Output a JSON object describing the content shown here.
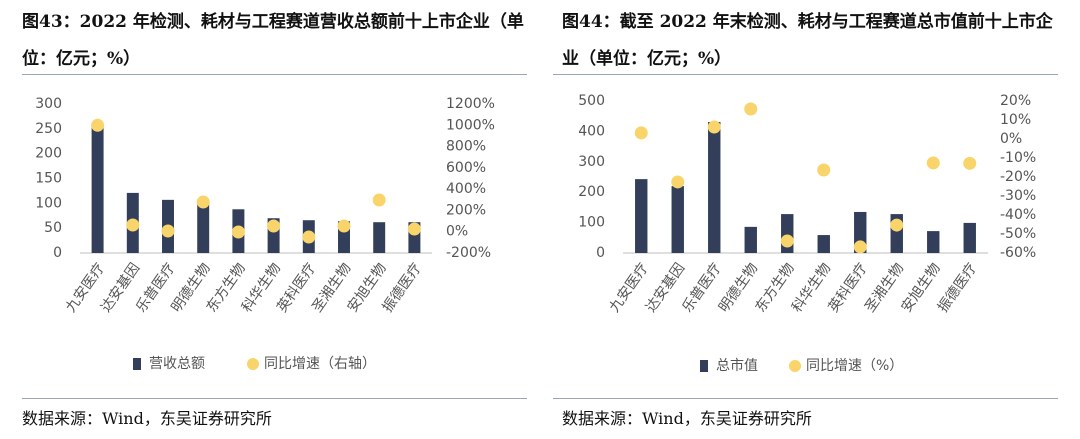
{
  "chart_data": [
    {
      "type": "combo",
      "title": "图43：2022 年检测、耗材与工程赛道营收总额前十上市企业（单位：亿元；%）",
      "source": "数据来源：Wind，东吴证券研究所",
      "categories": [
        "九安医疗",
        "达安基因",
        "乐普医疗",
        "明德生物",
        "东方生物",
        "科华生物",
        "英科医疗",
        "圣湘生物",
        "安旭生物",
        "振德医疗"
      ],
      "series": [
        {
          "name": "营收总额",
          "color": "#333f5a",
          "mark": "bar",
          "values": [
            260,
            121,
            107,
            103,
            88,
            70,
            66,
            64,
            62,
            62
          ]
        },
        {
          "name": "同比增速（右轴）",
          "color": "#f8d46a",
          "mark": "dot",
          "axis": "y2",
          "values": [
            1000,
            63,
            7,
            279,
            -3,
            54,
            -50,
            54,
            298,
            25
          ]
        }
      ],
      "ylim": [
        0,
        300
      ],
      "yticks": [
        0,
        50,
        100,
        150,
        200,
        250,
        300
      ],
      "y2lim": [
        -200,
        1200
      ],
      "y2ticks": [
        {
          "value": -200,
          "label": "-200%"
        },
        {
          "value": 0,
          "label": "0%"
        },
        {
          "value": 200,
          "label": "200%"
        },
        {
          "value": 400,
          "label": "400%"
        },
        {
          "value": 600,
          "label": "600%"
        },
        {
          "value": 800,
          "label": "800%"
        },
        {
          "value": 1000,
          "label": "1000%"
        },
        {
          "value": 1200,
          "label": "1200%"
        }
      ],
      "legend": "bottom"
    },
    {
      "type": "combo",
      "title": "图44：截至 2022 年末检测、耗材与工程赛道总市值前十上市企业（单位：亿元；%）",
      "source": "数据来源：Wind，东吴证券研究所",
      "categories": [
        "九安医疗",
        "达安基因",
        "乐普医疗",
        "明德生物",
        "东方生物",
        "科华生物",
        "英科医疗",
        "圣湘生物",
        "安旭生物",
        "振德医疗"
      ],
      "series": [
        {
          "name": "总市值",
          "color": "#333f5a",
          "mark": "bar",
          "values": [
            243,
            220,
            431,
            86,
            128,
            59,
            135,
            128,
            72,
            99
          ]
        },
        {
          "name": "同比增速（%）",
          "color": "#f8d46a",
          "mark": "dot",
          "axis": "y2",
          "values": [
            3.2,
            -22.6,
            6.3,
            15.8,
            -53.7,
            -16.3,
            -56.8,
            -45.3,
            -12.6,
            -12.8
          ]
        }
      ],
      "ylim": [
        0,
        500
      ],
      "yticks": [
        0,
        100,
        200,
        300,
        400,
        500
      ],
      "y2lim": [
        -60,
        20
      ],
      "y2ticks": [
        {
          "value": -60,
          "label": "-60%"
        },
        {
          "value": -50,
          "label": "-50%"
        },
        {
          "value": -40,
          "label": "-40%"
        },
        {
          "value": -30,
          "label": "-30%"
        },
        {
          "value": -20,
          "label": "-20%"
        },
        {
          "value": -10,
          "label": "-10%"
        },
        {
          "value": 0,
          "label": "0%"
        },
        {
          "value": 10,
          "label": "10%"
        },
        {
          "value": 20,
          "label": "20%"
        }
      ],
      "legend": "bottom"
    }
  ]
}
